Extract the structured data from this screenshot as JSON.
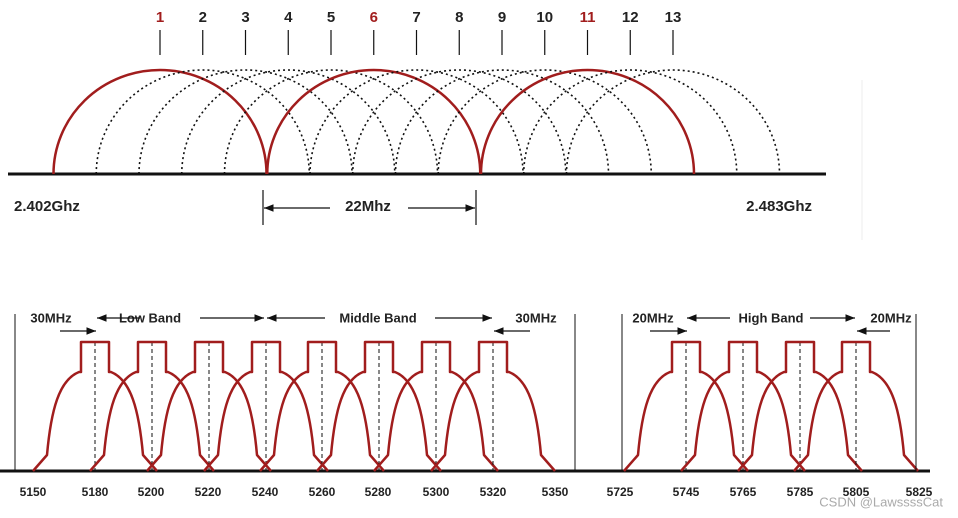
{
  "top_diagram": {
    "channels": [
      1,
      2,
      3,
      4,
      5,
      6,
      7,
      8,
      9,
      10,
      11,
      12,
      13
    ],
    "left_freq": "2.402Ghz",
    "right_freq": "2.483Ghz",
    "width_label": "22Mhz"
  },
  "bottom_diagram": {
    "low_band": "Low Band",
    "middle_band": "Middle Band",
    "high_band": "High Band",
    "guard_labels": [
      "30MHz",
      "30MHz",
      "20MHz",
      "20MHz"
    ],
    "frequencies": [
      "5150",
      "5180",
      "5200",
      "5220",
      "5240",
      "5260",
      "5280",
      "5300",
      "5320",
      "5350",
      "5725",
      "5745",
      "5765",
      "5785",
      "5805",
      "5825"
    ]
  },
  "watermark": "CSDN @LawssssCat"
}
